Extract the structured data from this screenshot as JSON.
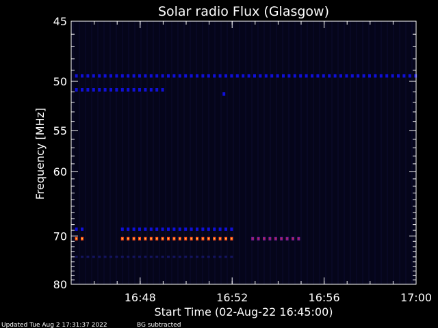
{
  "chart_data": {
    "type": "heatmap",
    "title": "Solar radio Flux (Glasgow)",
    "xlabel": "Start Time (02-Aug-22 16:45:00)",
    "ylabel": "Frequency [MHz]",
    "x_unit": "UT time",
    "xlim": [
      "16:45:00",
      "17:00:00"
    ],
    "ylim": [
      45,
      80
    ],
    "y_scale": "reciprocal",
    "x_ticks": [
      "16:48",
      "16:52",
      "16:56",
      "17:00"
    ],
    "y_ticks": [
      45,
      50,
      55,
      60,
      70,
      80
    ],
    "grid": false,
    "colormap": "blue-red-yellow on dark navy",
    "colors": {
      "background": "#05051a",
      "weak": "#1010d8",
      "mid": "#7a1a9a",
      "strong": "#ff4a1a",
      "peak": "#ffd040"
    },
    "bands": [
      {
        "freq_mhz": 49.5,
        "start": "16:45:10",
        "end": "17:00:00",
        "intensity": "weak"
      },
      {
        "freq_mhz": 50.8,
        "start": "16:45:10",
        "end": "16:49:10",
        "intensity": "weak"
      },
      {
        "freq_mhz": 51.2,
        "start": "16:51:35",
        "end": "16:51:45",
        "intensity": "weak"
      },
      {
        "freq_mhz": 68.8,
        "start": "16:45:10",
        "end": "16:45:40",
        "intensity": "weak"
      },
      {
        "freq_mhz": 68.8,
        "start": "16:47:10",
        "end": "16:52:00",
        "intensity": "weak"
      },
      {
        "freq_mhz": 70.5,
        "start": "16:45:10",
        "end": "16:45:40",
        "intensity": "strong"
      },
      {
        "freq_mhz": 70.5,
        "start": "16:47:10",
        "end": "16:52:00",
        "intensity": "strong"
      },
      {
        "freq_mhz": 70.5,
        "start": "16:52:50",
        "end": "16:55:00",
        "intensity": "mid"
      },
      {
        "freq_mhz": 74.0,
        "start": "16:45:10",
        "end": "16:52:00",
        "intensity": "faint"
      }
    ]
  },
  "footer": {
    "updated": "Updated Tue Aug  2 17:31:37 2022",
    "note": "BG subtracted"
  }
}
